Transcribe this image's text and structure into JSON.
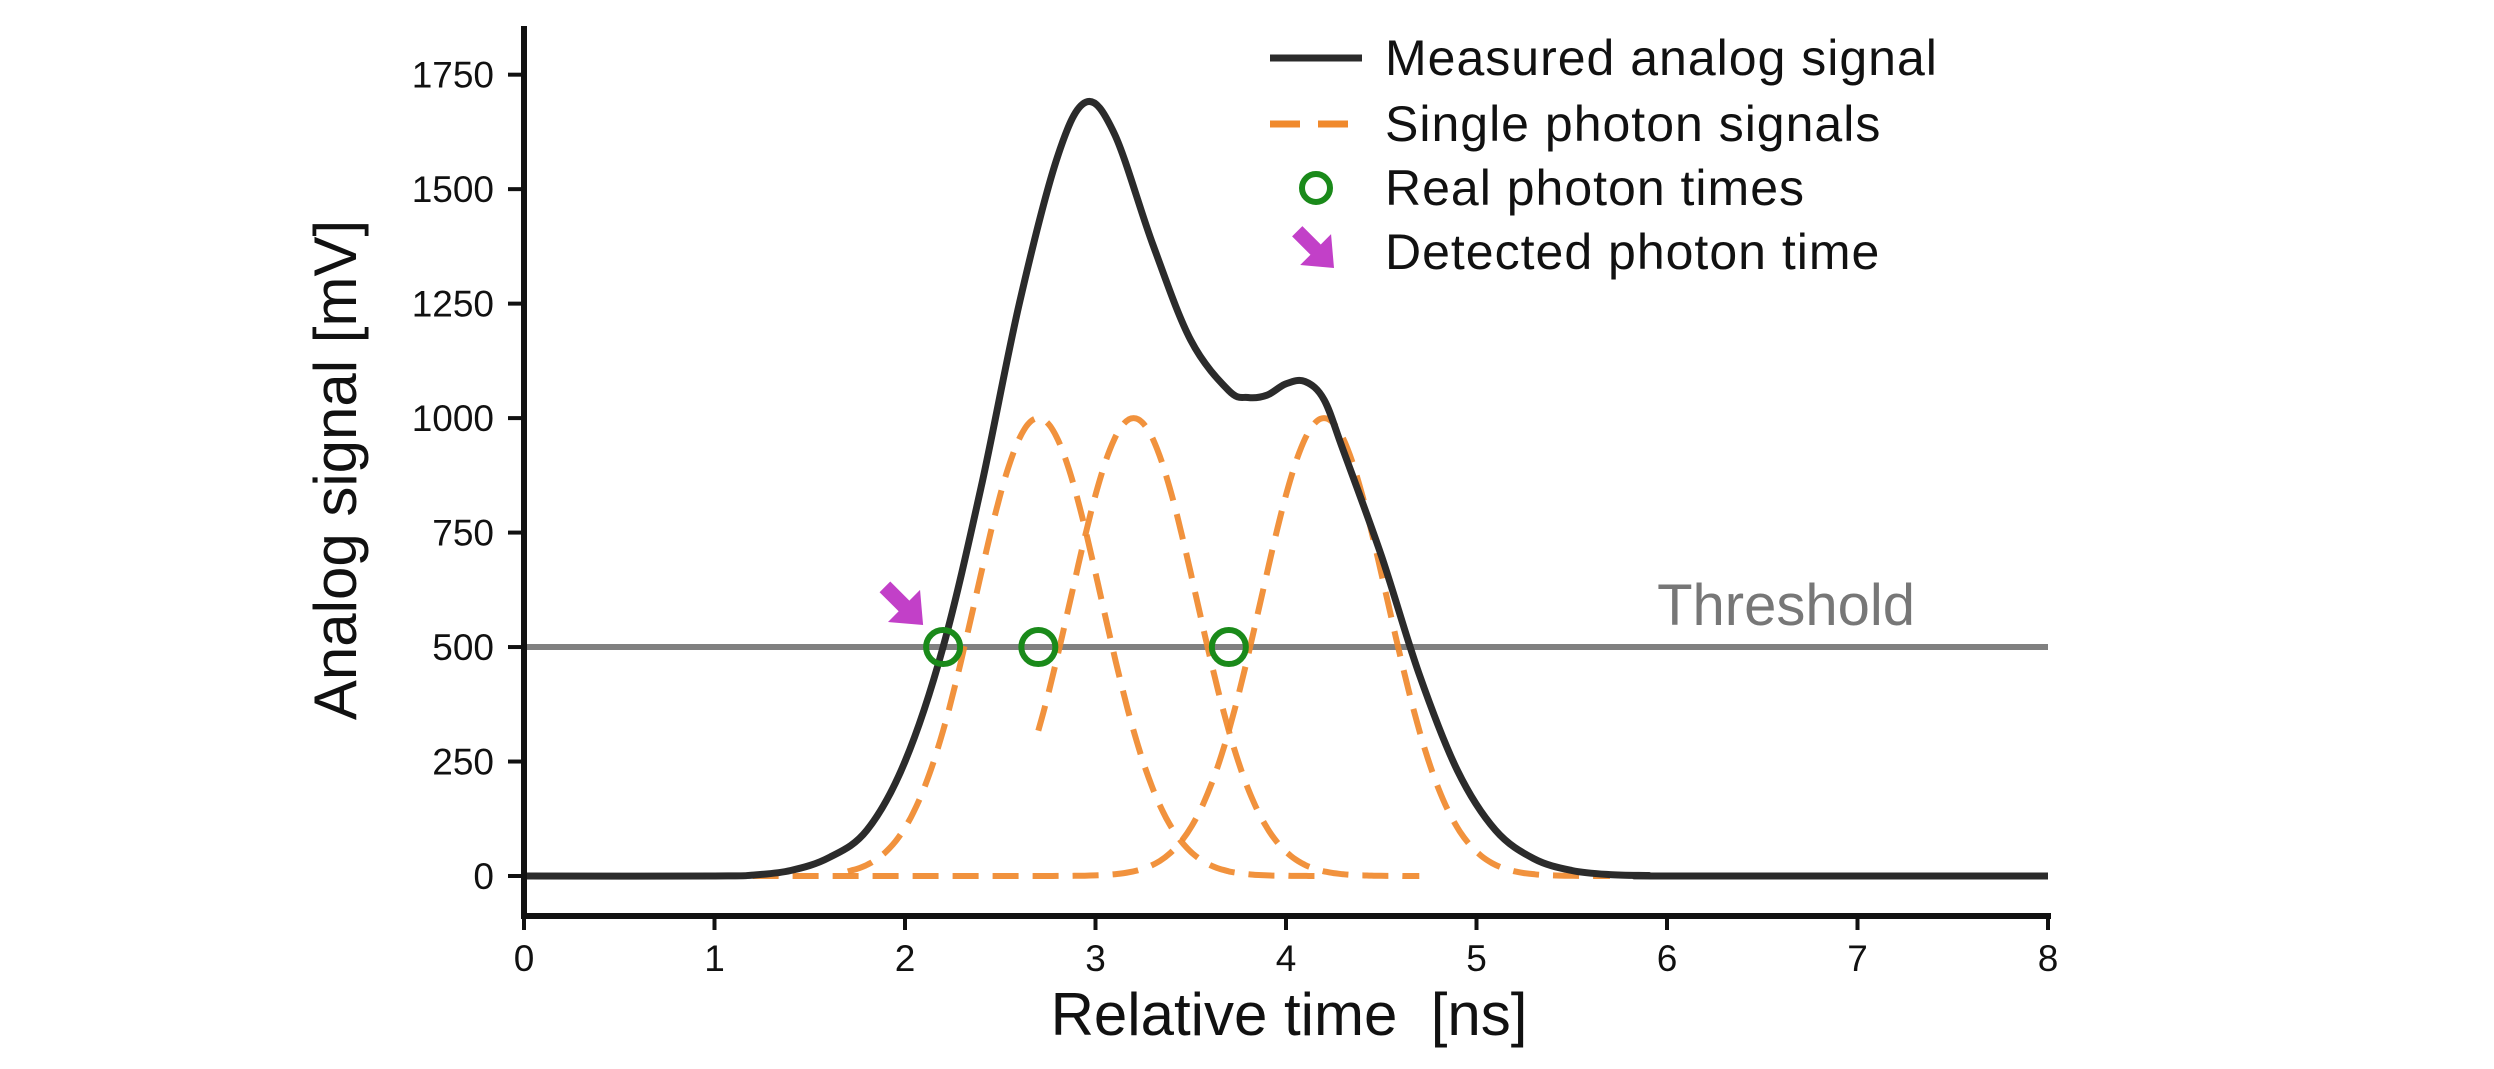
{
  "chart_data": {
    "type": "line",
    "xlabel": "Relative time  [ns]",
    "ylabel": "Analog signal [mV]",
    "xlim": [
      0,
      8
    ],
    "ylim": [
      -80,
      1850
    ],
    "x_ticks": [
      "0",
      "1",
      "2",
      "3",
      "4",
      "5",
      "6",
      "7",
      "8"
    ],
    "y_ticks": [
      "0",
      "250",
      "500",
      "750",
      "1000",
      "1250",
      "1500",
      "1750"
    ],
    "grid": false,
    "legend_position": "top-right",
    "threshold": {
      "label": "Threshold",
      "value": 500
    },
    "series": [
      {
        "name": "Measured analog signal",
        "style": "solid",
        "color": "#2b2b2b",
        "x": [
          0,
          1.0,
          1.2,
          1.4,
          1.6,
          1.8,
          2.0,
          2.2,
          2.4,
          2.6,
          2.8,
          2.95,
          3.1,
          3.3,
          3.5,
          3.7,
          3.8,
          3.9,
          4.0,
          4.1,
          4.2,
          4.3,
          4.5,
          4.7,
          4.9,
          5.1,
          5.3,
          5.5,
          5.7,
          5.9,
          6.0,
          8.0
        ],
        "y": [
          0,
          0,
          2,
          12,
          40,
          100,
          250,
          500,
          850,
          1250,
          1570,
          1690,
          1620,
          1380,
          1170,
          1060,
          1045,
          1050,
          1075,
          1080,
          1040,
          930,
          700,
          440,
          230,
          100,
          38,
          12,
          3,
          1,
          0,
          0
        ]
      },
      {
        "name": "Single photon signals",
        "style": "dashed",
        "color": "#f0892c",
        "pulses": [
          {
            "peak_time": 2.7,
            "peak_value": 1000,
            "x_range": [
              1.7,
              4.2
            ]
          },
          {
            "peak_time": 3.2,
            "peak_value": 1000,
            "x_range": [
              2.7,
              4.7
            ]
          },
          {
            "peak_time": 4.2,
            "peak_value": 1000,
            "x_range": [
              1.2,
              5.7
            ]
          }
        ]
      }
    ],
    "markers": [
      {
        "name": "Real photon times",
        "color": "#1a8a1a",
        "points": [
          {
            "x": 2.2,
            "y": 500
          },
          {
            "x": 2.7,
            "y": 500
          },
          {
            "x": 3.7,
            "y": 500
          }
        ]
      },
      {
        "name": "Detected photon time",
        "color": "#c240c8",
        "points": [
          {
            "x": 2.2,
            "y": 500
          }
        ]
      }
    ],
    "legend": [
      {
        "label": "Measured analog signal",
        "symbol": "solid-line"
      },
      {
        "label": "Single photon signals",
        "symbol": "dashed-line"
      },
      {
        "label": "Real photon times",
        "symbol": "open-circle"
      },
      {
        "label": "Detected photon time",
        "symbol": "arrow"
      }
    ]
  }
}
